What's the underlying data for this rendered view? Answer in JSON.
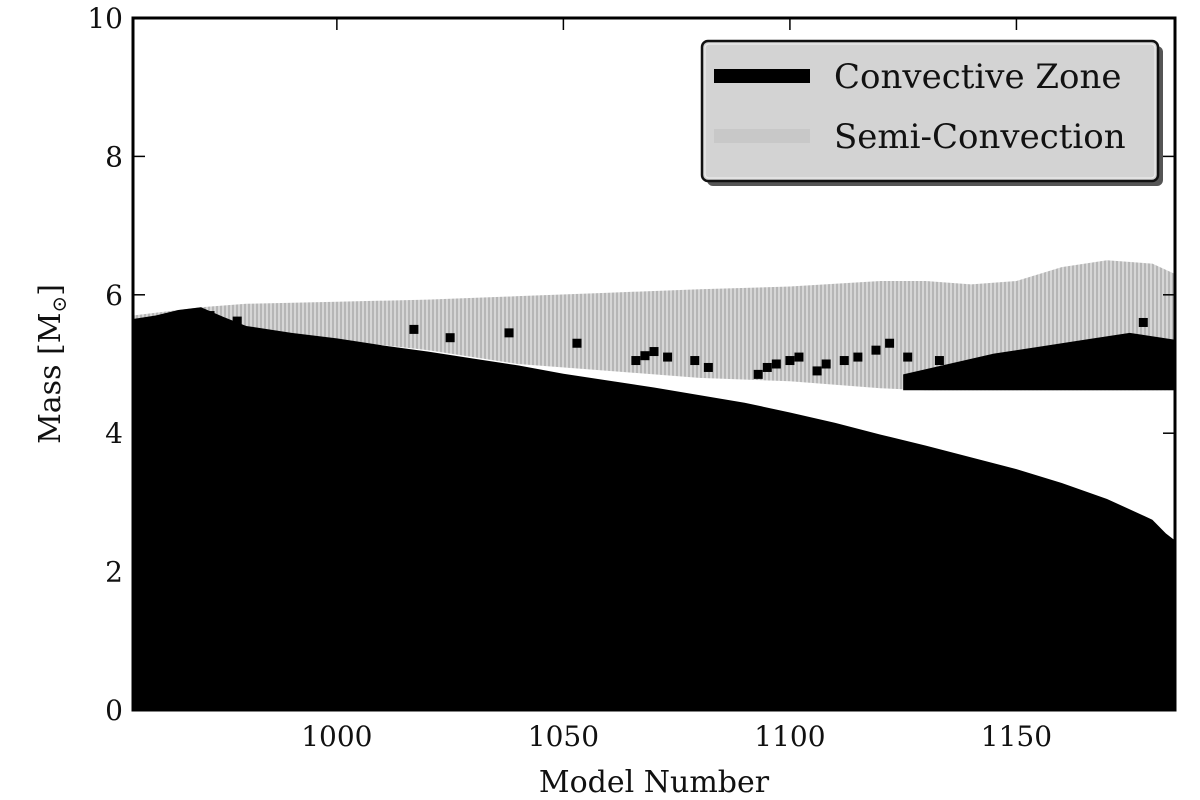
{
  "chart_data": {
    "type": "area",
    "xlabel": "Model Number",
    "ylabel_main": "Mass [M",
    "ylabel_sub": "⊙",
    "ylabel_close": "]",
    "xlim": [
      955,
      1185
    ],
    "ylim": [
      0,
      10
    ],
    "xticks": [
      1000,
      1050,
      1100,
      1150
    ],
    "xtick_labels": [
      "1000",
      "1050",
      "1100",
      "1150"
    ],
    "yticks": [
      0,
      2,
      4,
      6,
      8,
      10
    ],
    "ytick_labels": [
      "0",
      "2",
      "4",
      "6",
      "8",
      "10"
    ],
    "grid": false,
    "legend_position": "top-right",
    "series": [
      {
        "name": "Convective Zone",
        "color": "#000000",
        "x": [
          955,
          960,
          965,
          970,
          975,
          980,
          990,
          1000,
          1010,
          1020,
          1030,
          1040,
          1050,
          1060,
          1070,
          1080,
          1090,
          1100,
          1110,
          1120,
          1130,
          1140,
          1150,
          1160,
          1170,
          1180,
          1183,
          1185
        ],
        "upper": [
          5.65,
          5.7,
          5.78,
          5.82,
          5.68,
          5.55,
          5.45,
          5.37,
          5.27,
          5.18,
          5.08,
          4.98,
          4.86,
          4.76,
          4.66,
          4.55,
          4.44,
          4.3,
          4.15,
          3.98,
          3.82,
          3.65,
          3.48,
          3.28,
          3.05,
          2.75,
          2.55,
          2.45
        ]
      },
      {
        "name": "Semi-Convection",
        "color": "#bdbdbd",
        "x": [
          955,
          970,
          980,
          1000,
          1020,
          1040,
          1060,
          1080,
          1100,
          1110,
          1120,
          1130,
          1140,
          1150,
          1160,
          1170,
          1180,
          1185
        ],
        "upper": [
          5.7,
          5.82,
          5.87,
          5.9,
          5.93,
          5.98,
          6.03,
          6.08,
          6.12,
          6.16,
          6.2,
          6.2,
          6.15,
          6.2,
          6.4,
          6.5,
          6.45,
          6.3
        ],
        "lower": [
          5.6,
          5.7,
          5.5,
          5.35,
          5.2,
          5.0,
          4.9,
          4.8,
          4.75,
          4.7,
          4.65,
          4.62,
          4.62,
          4.62,
          4.62,
          4.62,
          4.62,
          4.62
        ]
      }
    ],
    "outer_convection": {
      "name": "Convective Zone",
      "x": [
        1125,
        1135,
        1145,
        1155,
        1165,
        1175,
        1185
      ],
      "lower": [
        4.62,
        4.62,
        4.62,
        4.62,
        4.62,
        4.62,
        4.62
      ],
      "upper": [
        4.85,
        5.0,
        5.15,
        5.25,
        5.35,
        5.45,
        5.35
      ]
    },
    "scatter_points": [
      {
        "x": 972,
        "y": 5.7
      },
      {
        "x": 978,
        "y": 5.62
      },
      {
        "x": 1017,
        "y": 5.5
      },
      {
        "x": 1025,
        "y": 5.38
      },
      {
        "x": 1038,
        "y": 5.45
      },
      {
        "x": 1053,
        "y": 5.3
      },
      {
        "x": 1066,
        "y": 5.05
      },
      {
        "x": 1068,
        "y": 5.12
      },
      {
        "x": 1070,
        "y": 5.18
      },
      {
        "x": 1073,
        "y": 5.1
      },
      {
        "x": 1079,
        "y": 5.05
      },
      {
        "x": 1082,
        "y": 4.95
      },
      {
        "x": 1093,
        "y": 4.85
      },
      {
        "x": 1095,
        "y": 4.95
      },
      {
        "x": 1097,
        "y": 5.0
      },
      {
        "x": 1100,
        "y": 5.05
      },
      {
        "x": 1102,
        "y": 5.1
      },
      {
        "x": 1106,
        "y": 4.9
      },
      {
        "x": 1108,
        "y": 5.0
      },
      {
        "x": 1112,
        "y": 5.05
      },
      {
        "x": 1115,
        "y": 5.1
      },
      {
        "x": 1119,
        "y": 5.2
      },
      {
        "x": 1122,
        "y": 5.3
      },
      {
        "x": 1126,
        "y": 5.1
      },
      {
        "x": 1133,
        "y": 5.05
      },
      {
        "x": 1178,
        "y": 5.6
      }
    ],
    "legend": [
      {
        "label": "Convective Zone",
        "color": "#000000"
      },
      {
        "label": "Semi-Convection",
        "color": "#c8c8c8"
      }
    ]
  }
}
